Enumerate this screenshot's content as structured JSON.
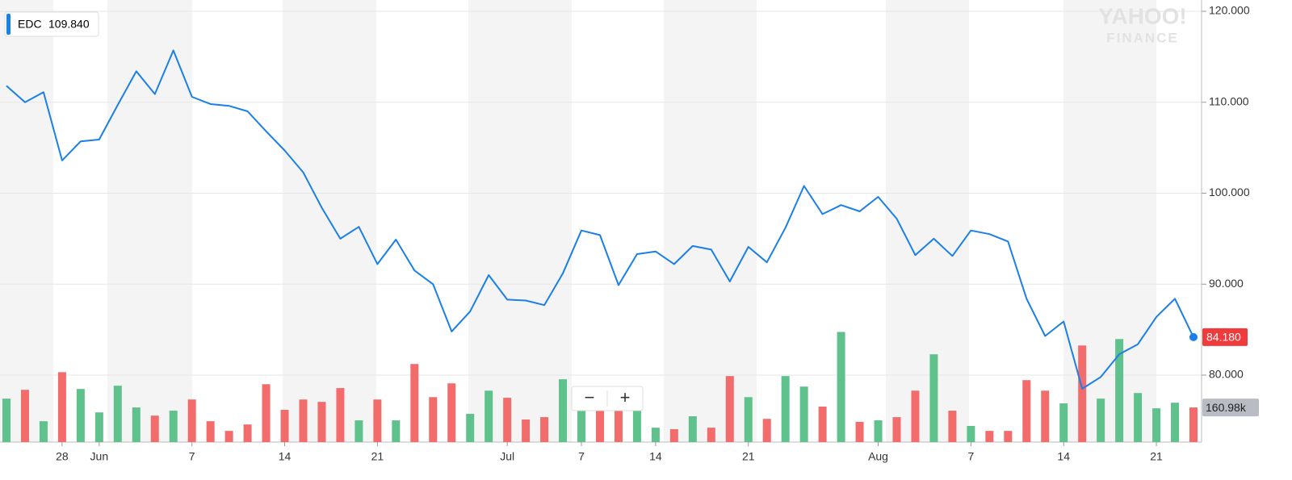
{
  "chart_data": {
    "type": "line",
    "legend_value": {
      "value": 109.84,
      "label": "109.840"
    },
    "watermark": [
      "YAHOO!",
      "FINANCE"
    ],
    "controls": [
      "−",
      "+"
    ],
    "categories": [
      null,
      null,
      null,
      "28",
      null,
      "Jun",
      null,
      null,
      null,
      null,
      "7",
      null,
      null,
      null,
      null,
      "14",
      null,
      null,
      null,
      null,
      "21",
      null,
      null,
      null,
      null,
      null,
      null,
      "Jul",
      null,
      null,
      null,
      "7",
      null,
      null,
      null,
      "14",
      null,
      null,
      null,
      null,
      "21",
      null,
      null,
      null,
      null,
      null,
      null,
      "Aug",
      null,
      null,
      null,
      null,
      "7",
      null,
      null,
      null,
      null,
      "14",
      null,
      null,
      null,
      null,
      "21",
      null,
      null
    ],
    "series": [
      {
        "name": "EDC",
        "color": "#1a7fe8",
        "values": [
          111.8,
          110.0,
          111.1,
          103.6,
          105.7,
          105.9,
          109.7,
          113.4,
          110.9,
          115.7,
          110.6,
          109.8,
          109.6,
          109.0,
          106.8,
          104.7,
          102.3,
          98.4,
          95.0,
          96.3,
          92.2,
          94.9,
          91.5,
          90.0,
          84.8,
          87.0,
          91.0,
          88.3,
          88.2,
          87.7,
          91.2,
          95.9,
          95.4,
          89.9,
          93.3,
          93.6,
          92.2,
          94.2,
          93.8,
          90.3,
          94.1,
          92.4,
          96.2,
          100.8,
          97.7,
          98.7,
          98.0,
          99.6,
          97.2,
          93.2,
          95.0,
          93.1,
          95.9,
          95.5,
          94.7,
          88.4,
          84.3,
          85.9,
          78.5,
          79.8,
          82.3,
          83.4,
          86.4,
          88.4,
          84.18
        ],
        "value_labels": [
          null,
          null,
          null,
          null,
          null,
          null,
          null,
          null,
          null,
          null,
          null,
          null,
          null,
          null,
          null,
          null,
          null,
          null,
          null,
          null,
          null,
          null,
          null,
          null,
          null,
          null,
          null,
          null,
          null,
          null,
          null,
          null,
          null,
          null,
          null,
          null,
          null,
          null,
          null,
          null,
          null,
          null,
          null,
          null,
          null,
          null,
          null,
          null,
          null,
          null,
          null,
          null,
          null,
          null,
          null,
          null,
          null,
          null,
          null,
          null,
          null,
          null,
          null,
          null,
          "84.180"
        ]
      }
    ],
    "volume": {
      "lim": [
        0,
        600
      ],
      "values": [
        202,
        243,
        97,
        325,
        247,
        138,
        262,
        161,
        123,
        146,
        198,
        97,
        52,
        82,
        269,
        150,
        198,
        187,
        251,
        101,
        198,
        101,
        363,
        209,
        273,
        131,
        239,
        206,
        105,
        116,
        292,
        180,
        161,
        161,
        161,
        67,
        60,
        120,
        67,
        307,
        209,
        108,
        307,
        258,
        165,
        512,
        94,
        101,
        116,
        239,
        408,
        146,
        75,
        52,
        52,
        288,
        239,
        180,
        449,
        202,
        479,
        228,
        157,
        183,
        160.98
      ],
      "value_labels": [
        null,
        null,
        null,
        null,
        null,
        null,
        null,
        null,
        null,
        null,
        null,
        null,
        null,
        null,
        null,
        null,
        null,
        null,
        null,
        null,
        null,
        null,
        null,
        null,
        null,
        null,
        null,
        null,
        null,
        null,
        null,
        null,
        null,
        null,
        null,
        null,
        null,
        null,
        null,
        null,
        null,
        null,
        null,
        null,
        null,
        null,
        null,
        null,
        null,
        null,
        null,
        null,
        null,
        null,
        null,
        null,
        null,
        null,
        null,
        null,
        null,
        null,
        null,
        null,
        "160.98k"
      ],
      "colors": [
        "#5fc28c",
        "#f36c6c",
        "#5fc28c",
        "#f36c6c",
        "#5fc28c",
        "#5fc28c",
        "#5fc28c",
        "#5fc28c",
        "#f36c6c",
        "#5fc28c",
        "#f36c6c",
        "#f36c6c",
        "#f36c6c",
        "#f36c6c",
        "#f36c6c",
        "#f36c6c",
        "#f36c6c",
        "#f36c6c",
        "#f36c6c",
        "#5fc28c",
        "#f36c6c",
        "#5fc28c",
        "#f36c6c",
        "#f36c6c",
        "#f36c6c",
        "#5fc28c",
        "#5fc28c",
        "#f36c6c",
        "#f36c6c",
        "#f36c6c",
        "#5fc28c",
        "#5fc28c",
        "#f36c6c",
        "#f36c6c",
        "#5fc28c",
        "#5fc28c",
        "#f36c6c",
        "#5fc28c",
        "#f36c6c",
        "#f36c6c",
        "#5fc28c",
        "#f36c6c",
        "#5fc28c",
        "#5fc28c",
        "#f36c6c",
        "#5fc28c",
        "#f36c6c",
        "#5fc28c",
        "#f36c6c",
        "#f36c6c",
        "#5fc28c",
        "#f36c6c",
        "#5fc28c",
        "#f36c6c",
        "#f36c6c",
        "#f36c6c",
        "#f36c6c",
        "#5fc28c",
        "#f36c6c",
        "#5fc28c",
        "#5fc28c",
        "#5fc28c",
        "#5fc28c",
        "#5fc28c",
        "#f36c6c"
      ]
    },
    "ylim": [
      72.64,
      121.24
    ],
    "yticks": [
      {
        "value": 120,
        "label": "120.000"
      },
      {
        "value": 110,
        "label": "110.000"
      },
      {
        "value": 100,
        "label": "100.000"
      },
      {
        "value": 90,
        "label": "90.000"
      },
      {
        "value": 80,
        "label": "80.000"
      }
    ],
    "grid": true
  }
}
